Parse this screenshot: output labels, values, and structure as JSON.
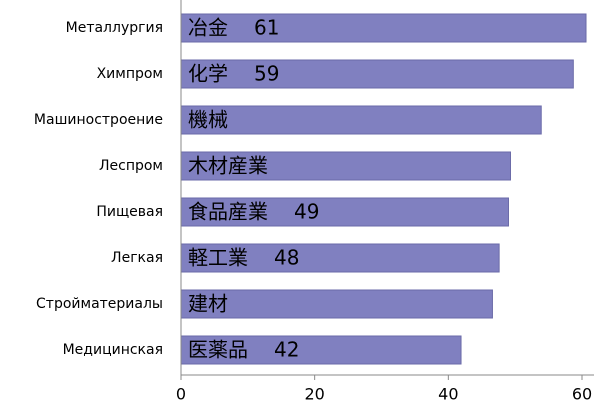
{
  "chart_data": {
    "type": "barh",
    "categories": [
      "Металлургия",
      "Химпром",
      "Машиностроение",
      "Леспром",
      "Пищевая",
      "Легкая",
      "Стройматериалы",
      "Медицинская"
    ],
    "values": [
      60.6,
      58.7,
      53.9,
      49.3,
      49.0,
      47.6,
      46.6,
      41.9
    ],
    "bar_labels": [
      "冶金",
      "化学",
      "機械",
      "木材産業",
      "食品産業",
      "軽工業",
      "建材",
      "医薬品"
    ],
    "value_labels": [
      "61",
      "59",
      null,
      null,
      "49",
      "48",
      null,
      "42"
    ],
    "color": "#8080c0",
    "xlim": [
      0,
      60
    ],
    "xticks": [
      0,
      20,
      40,
      60
    ]
  }
}
